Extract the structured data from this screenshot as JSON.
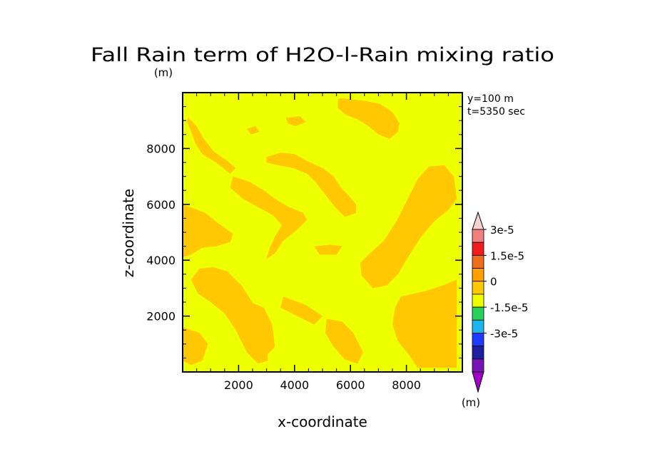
{
  "chart_data": {
    "type": "heatmap",
    "title": "Fall Rain term of H2O-l-Rain mixing ratio",
    "title_unit": "(m)",
    "xlabel": "x-coordinate",
    "ylabel": "z-coordinate",
    "xlim": [
      0,
      10000
    ],
    "ylim": [
      0,
      10000
    ],
    "x_ticks": [
      2000,
      4000,
      6000,
      8000
    ],
    "y_ticks": [
      2000,
      4000,
      6000,
      8000
    ],
    "annotations": [
      "y=100 m",
      "t=5350 sec"
    ],
    "colorbar": {
      "unit": "(m)",
      "labels": [
        "3e-5",
        "1.5e-5",
        "0",
        "-1.5e-5",
        "-3e-5"
      ],
      "colors": [
        "#f4d2d2",
        "#f07f7f",
        "#ee1e1e",
        "#ee6e1e",
        "#ffa000",
        "#ffc800",
        "#eeff00",
        "#28d25a",
        "#1eb4ee",
        "#1e3cff",
        "#1e1ea0",
        "#7814b4",
        "#a000c8"
      ]
    },
    "background_color": "#eeff00",
    "region_color": "#ffc800",
    "regions": [
      [
        [
          5650,
          9800
        ],
        [
          6550,
          9700
        ],
        [
          7050,
          9600
        ],
        [
          7500,
          9300
        ],
        [
          7750,
          8900
        ],
        [
          7700,
          8600
        ],
        [
          7400,
          8350
        ],
        [
          7000,
          8500
        ],
        [
          6650,
          8800
        ],
        [
          6250,
          9050
        ],
        [
          5850,
          9200
        ],
        [
          5550,
          9450
        ],
        [
          5550,
          9750
        ]
      ],
      [
        [
          3000,
          7700
        ],
        [
          3500,
          7850
        ],
        [
          4000,
          7800
        ],
        [
          4550,
          7500
        ],
        [
          5000,
          7300
        ],
        [
          5400,
          7000
        ],
        [
          5650,
          6600
        ],
        [
          5950,
          6300
        ],
        [
          6200,
          6000
        ],
        [
          6200,
          5700
        ],
        [
          5800,
          5550
        ],
        [
          5450,
          5900
        ],
        [
          5100,
          6350
        ],
        [
          4750,
          6800
        ],
        [
          4450,
          7100
        ],
        [
          3950,
          7300
        ],
        [
          3400,
          7400
        ],
        [
          3000,
          7500
        ]
      ],
      [
        [
          200,
          9100
        ],
        [
          500,
          8800
        ],
        [
          750,
          8350
        ],
        [
          1100,
          7900
        ],
        [
          1600,
          7550
        ],
        [
          1900,
          7300
        ],
        [
          1700,
          7100
        ],
        [
          1200,
          7500
        ],
        [
          700,
          7800
        ],
        [
          450,
          8200
        ],
        [
          300,
          8600
        ],
        [
          150,
          9000
        ]
      ],
      [
        [
          1800,
          7000
        ],
        [
          2400,
          6800
        ],
        [
          2900,
          6500
        ],
        [
          3300,
          6200
        ],
        [
          3800,
          5900
        ],
        [
          4300,
          5700
        ],
        [
          4450,
          5450
        ],
        [
          4100,
          5100
        ],
        [
          3600,
          4700
        ],
        [
          3300,
          4250
        ],
        [
          3000,
          4050
        ],
        [
          3100,
          4400
        ],
        [
          3300,
          4850
        ],
        [
          3550,
          5250
        ],
        [
          3250,
          5600
        ],
        [
          2700,
          5900
        ],
        [
          2150,
          6200
        ],
        [
          1700,
          6600
        ]
      ],
      [
        [
          0,
          6000
        ],
        [
          800,
          5700
        ],
        [
          1300,
          5300
        ],
        [
          1800,
          4950
        ],
        [
          1700,
          4650
        ],
        [
          1200,
          4500
        ],
        [
          700,
          4450
        ],
        [
          300,
          4200
        ],
        [
          0,
          4100
        ]
      ],
      [
        [
          600,
          3700
        ],
        [
          1100,
          3750
        ],
        [
          1600,
          3600
        ],
        [
          2100,
          3100
        ],
        [
          2550,
          2400
        ],
        [
          2850,
          1600
        ],
        [
          3000,
          1000
        ],
        [
          3050,
          400
        ],
        [
          2700,
          300
        ],
        [
          2300,
          700
        ],
        [
          1900,
          1500
        ],
        [
          1500,
          2100
        ],
        [
          1000,
          2500
        ],
        [
          550,
          2800
        ],
        [
          300,
          3300
        ]
      ],
      [
        [
          0,
          1600
        ],
        [
          600,
          1400
        ],
        [
          900,
          1000
        ],
        [
          700,
          400
        ],
        [
          300,
          250
        ],
        [
          0,
          400
        ]
      ],
      [
        [
          9800,
          6200
        ],
        [
          9700,
          7000
        ],
        [
          9350,
          7400
        ],
        [
          8800,
          7350
        ],
        [
          8400,
          6900
        ],
        [
          8050,
          6200
        ],
        [
          7650,
          5400
        ],
        [
          7200,
          4700
        ],
        [
          6700,
          4250
        ],
        [
          6350,
          3900
        ],
        [
          6400,
          3450
        ],
        [
          6800,
          3000
        ],
        [
          7300,
          3100
        ],
        [
          7700,
          3500
        ],
        [
          8050,
          4100
        ],
        [
          8500,
          4800
        ],
        [
          9000,
          5400
        ],
        [
          9500,
          5800
        ]
      ],
      [
        [
          7800,
          2700
        ],
        [
          8700,
          2900
        ],
        [
          9300,
          3100
        ],
        [
          9800,
          3300
        ],
        [
          9800,
          150
        ],
        [
          8400,
          150
        ],
        [
          8100,
          600
        ],
        [
          7700,
          1100
        ],
        [
          7500,
          1700
        ],
        [
          7600,
          2300
        ]
      ],
      [
        [
          5150,
          1900
        ],
        [
          5700,
          1800
        ],
        [
          6100,
          1400
        ],
        [
          6450,
          700
        ],
        [
          6250,
          300
        ],
        [
          5800,
          450
        ],
        [
          5400,
          900
        ],
        [
          5100,
          1400
        ]
      ],
      [
        [
          3600,
          2700
        ],
        [
          4400,
          2400
        ],
        [
          5000,
          2000
        ],
        [
          4700,
          1700
        ],
        [
          4100,
          2000
        ],
        [
          3500,
          2300
        ]
      ],
      [
        [
          4700,
          4500
        ],
        [
          5300,
          4550
        ],
        [
          5700,
          4500
        ],
        [
          5500,
          4200
        ],
        [
          4900,
          4200
        ]
      ],
      [
        [
          2400,
          2500
        ],
        [
          2900,
          2300
        ],
        [
          3200,
          1700
        ],
        [
          3300,
          900
        ],
        [
          3000,
          600
        ],
        [
          2700,
          1200
        ],
        [
          2450,
          1900
        ]
      ],
      [
        [
          3700,
          9100
        ],
        [
          4200,
          9150
        ],
        [
          4400,
          8950
        ],
        [
          4050,
          8800
        ],
        [
          3750,
          8900
        ]
      ],
      [
        [
          2300,
          8700
        ],
        [
          2600,
          8800
        ],
        [
          2750,
          8600
        ],
        [
          2450,
          8500
        ]
      ]
    ]
  }
}
